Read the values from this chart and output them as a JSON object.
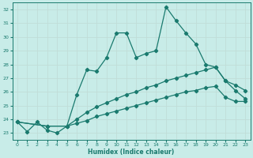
{
  "xlabel": "Humidex (Indice chaleur)",
  "background_color": "#c8ece8",
  "grid_color": "#d0e8e4",
  "line_color": "#1a7a6e",
  "xlim": [
    -0.5,
    23.5
  ],
  "ylim": [
    22.5,
    32.5
  ],
  "xticks": [
    0,
    1,
    2,
    3,
    4,
    5,
    6,
    7,
    8,
    9,
    10,
    11,
    12,
    13,
    14,
    15,
    16,
    17,
    18,
    19,
    20,
    21,
    22,
    23
  ],
  "yticks": [
    23,
    24,
    25,
    26,
    27,
    28,
    29,
    30,
    31,
    32
  ],
  "line1_x": [
    0,
    1,
    2,
    3,
    4,
    5,
    6,
    7,
    8,
    9,
    10,
    11,
    12,
    13,
    14,
    15,
    16,
    17,
    18,
    19,
    20,
    21,
    22,
    23
  ],
  "line1_y": [
    23.8,
    23.1,
    23.8,
    23.2,
    23.0,
    23.5,
    25.8,
    27.6,
    27.5,
    28.5,
    30.3,
    30.3,
    28.5,
    28.8,
    29.0,
    32.2,
    31.2,
    30.3,
    29.5,
    28.0,
    27.8,
    26.8,
    26.1,
    25.5
  ],
  "line2_x": [
    0,
    3,
    5,
    6,
    7,
    8,
    9,
    10,
    11,
    12,
    13,
    14,
    15,
    16,
    17,
    18,
    19,
    20,
    21,
    22,
    23
  ],
  "line2_y": [
    23.8,
    23.5,
    23.5,
    24.0,
    24.5,
    24.9,
    25.2,
    25.5,
    25.8,
    26.0,
    26.3,
    26.5,
    26.8,
    27.0,
    27.2,
    27.4,
    27.6,
    27.8,
    26.8,
    26.5,
    26.1
  ],
  "line3_x": [
    0,
    3,
    5,
    6,
    7,
    8,
    9,
    10,
    11,
    12,
    13,
    14,
    15,
    16,
    17,
    18,
    19,
    20,
    21,
    22,
    23
  ],
  "line3_y": [
    23.8,
    23.5,
    23.5,
    23.7,
    23.9,
    24.2,
    24.4,
    24.6,
    24.8,
    25.0,
    25.2,
    25.4,
    25.6,
    25.8,
    26.0,
    26.1,
    26.3,
    26.4,
    25.6,
    25.3,
    25.3
  ]
}
